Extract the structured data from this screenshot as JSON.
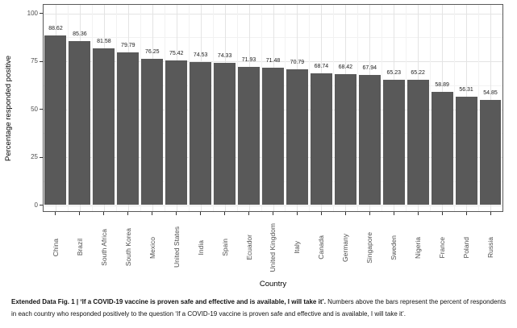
{
  "chart_data": {
    "type": "bar",
    "title": "",
    "xlabel": "Country",
    "ylabel": "Percentage responded positive",
    "categories": [
      "China",
      "Brazil",
      "South Africa",
      "South Korea",
      "Mexico",
      "United States",
      "India",
      "Spain",
      "Ecuador",
      "United Kingdom",
      "Italy",
      "Canada",
      "Germany",
      "Singapore",
      "Sweden",
      "Nigeria",
      "France",
      "Poland",
      "Russia"
    ],
    "values": [
      88.62,
      85.36,
      81.58,
      79.79,
      76.25,
      75.42,
      74.53,
      74.33,
      71.93,
      71.48,
      70.79,
      68.74,
      68.42,
      67.94,
      65.23,
      65.22,
      58.89,
      56.31,
      54.85
    ],
    "value_labels": [
      "88.62",
      "85.36",
      "81.58",
      "79.79",
      "76.25",
      "75.42",
      "74.53",
      "74.33",
      "71.93",
      "71.48",
      "70.79",
      "68.74",
      "68.42",
      "67.94",
      "65.23",
      "65.22",
      "58.89",
      "56.31",
      "54.85"
    ],
    "ylim": [
      0,
      100
    ],
    "yticks": [
      0,
      25,
      50,
      75,
      100
    ],
    "yticks_minor": [
      12.5,
      37.5,
      62.5,
      87.5
    ],
    "grid": true,
    "legend": false,
    "colors": {
      "bar": "#595959",
      "panel_border": "#595959",
      "grid_major": "#e4e4e4",
      "grid_minor": "#f2f2f2",
      "axis_text": "#4d4d4d",
      "tick": "#333333",
      "value_label": "#1a1a1a"
    }
  },
  "caption": {
    "bold": "Extended Data Fig. 1 | ‘If a COVID-19 vaccine is proven safe and effective and is available, I will take it’.",
    "text": "Numbers above the bars represent the percent of respondents in each country who responded positively to the question ‘If a COVID-19 vaccine is proven safe and effective and is available, I will take it’."
  }
}
